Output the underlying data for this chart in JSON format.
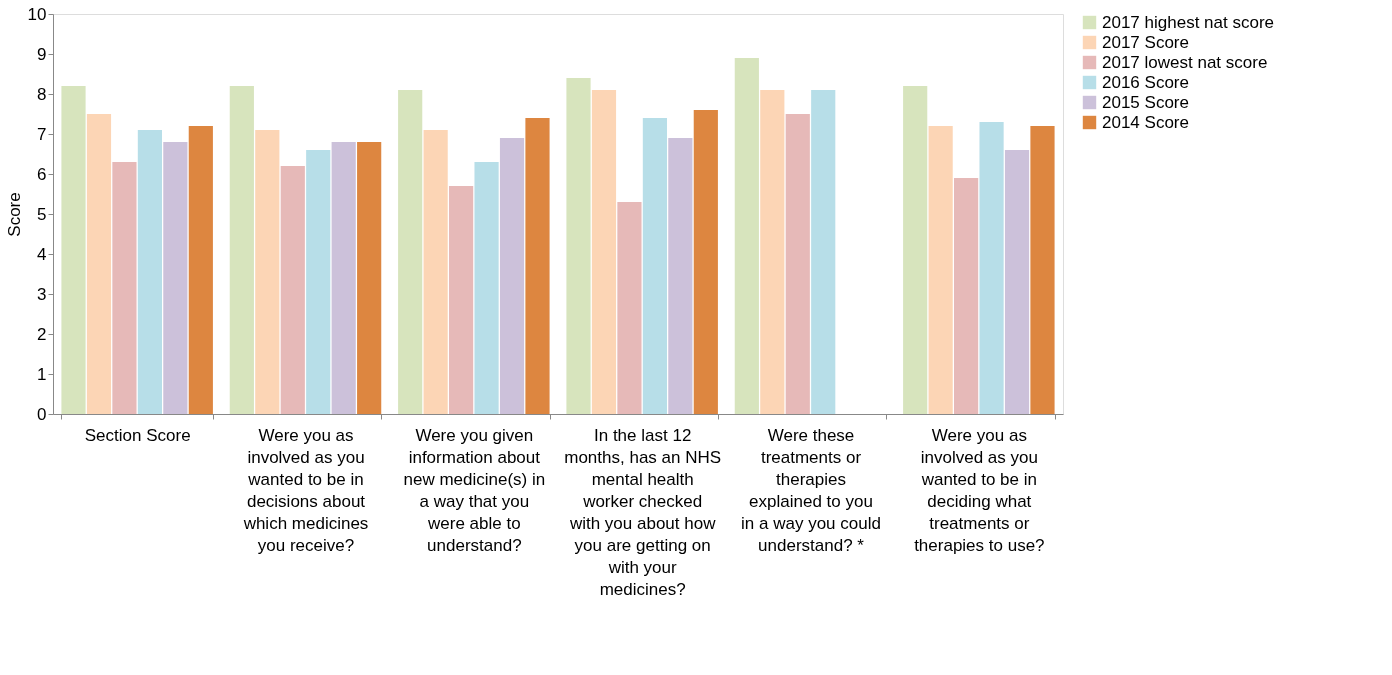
{
  "chart_data": {
    "type": "bar",
    "ylabel": "Score",
    "categories": [
      "Section Score",
      "Were you as involved as you wanted to be in decisions about which medicines you receive?",
      "Were you given information about new medicine(s) in a way that you were able to understand?",
      "In the last 12 months, has an NHS mental health worker checked with you about how you are getting on with your medicines?",
      "Were these treatments or therapies explained to you in a way you could understand? *",
      "Were you as involved as you wanted to be in deciding what treatments or therapies to use?"
    ],
    "series": [
      {
        "name": "2017 highest nat score",
        "color": "#d7e4bd",
        "values": [
          8.2,
          8.2,
          8.1,
          8.4,
          8.9,
          8.2
        ]
      },
      {
        "name": "2017 Score",
        "color": "#fcd5b5",
        "values": [
          7.5,
          7.1,
          7.1,
          8.1,
          8.1,
          7.2
        ]
      },
      {
        "name": "2017 lowest nat score",
        "color": "#e6b9b8",
        "values": [
          6.3,
          6.2,
          5.7,
          5.3,
          7.5,
          5.9
        ]
      },
      {
        "name": "2016 Score",
        "color": "#b7dee8",
        "values": [
          7.1,
          6.6,
          6.3,
          7.4,
          8.1,
          7.3
        ]
      },
      {
        "name": "2015 Score",
        "color": "#ccc1da",
        "values": [
          6.8,
          6.8,
          6.9,
          6.9,
          null,
          6.6
        ]
      },
      {
        "name": "2014 Score",
        "color": "#dd8640",
        "values": [
          7.2,
          6.8,
          7.4,
          7.6,
          null,
          7.2
        ]
      }
    ],
    "ylim": [
      0,
      10
    ],
    "yticks": [
      0,
      1,
      2,
      3,
      4,
      5,
      6,
      7,
      8,
      9,
      10
    ],
    "grid": false,
    "legend": "right"
  }
}
